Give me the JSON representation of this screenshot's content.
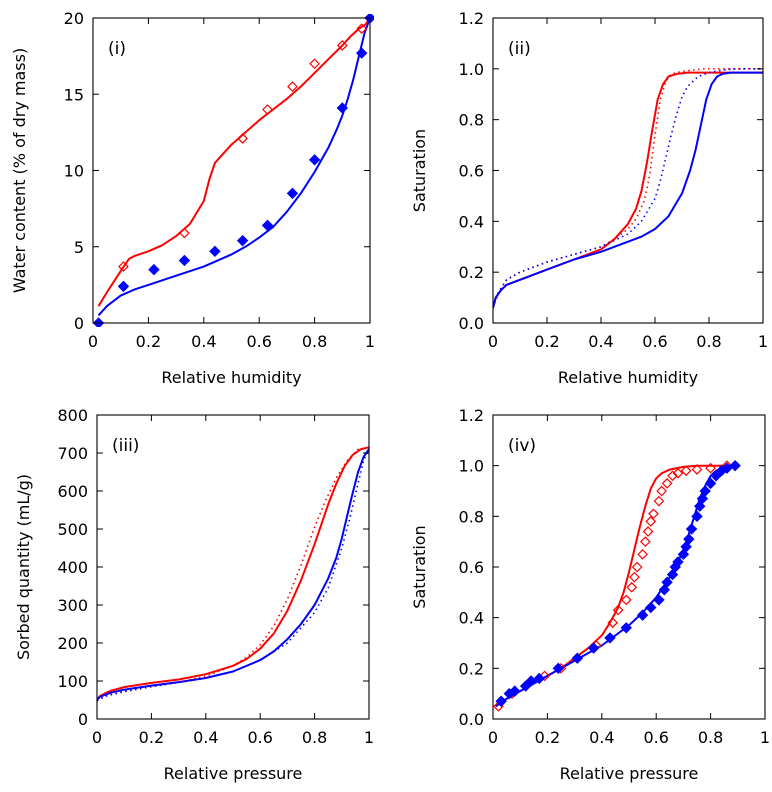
{
  "colors": {
    "desorption": "#ff0000",
    "adsorption": "#0000ff",
    "axis": "#000000"
  },
  "chart_data": [
    {
      "type": "line",
      "panel_label": "(i)",
      "xlabel": "Relative humidity",
      "ylabel": "Water content (% of dry mass)",
      "xlim": [
        0,
        1
      ],
      "ylim": [
        0,
        20
      ],
      "xticks": [
        0,
        0.2,
        0.4,
        0.6,
        0.8,
        1
      ],
      "xtick_labels": [
        "0",
        "0.2",
        "0.4",
        "0.6",
        "0.8",
        "1"
      ],
      "yticks": [
        0,
        5,
        10,
        15,
        20
      ],
      "ytick_labels": [
        "0",
        "5",
        "10",
        "15",
        "20"
      ],
      "series": [
        {
          "color": "#ff0000",
          "style": "solid",
          "x": [
            0.02,
            0.05,
            0.1,
            0.13,
            0.15,
            0.2,
            0.25,
            0.3,
            0.35,
            0.4,
            0.42,
            0.44,
            0.47,
            0.5,
            0.55,
            0.6,
            0.65,
            0.7,
            0.75,
            0.8,
            0.85,
            0.9,
            0.93,
            0.96,
            0.985,
            1.0
          ],
          "y": [
            1.1,
            2.0,
            3.4,
            4.2,
            4.4,
            4.7,
            5.1,
            5.7,
            6.5,
            8.0,
            9.4,
            10.5,
            11.1,
            11.7,
            12.5,
            13.3,
            14.0,
            14.7,
            15.5,
            16.4,
            17.3,
            18.2,
            18.8,
            19.3,
            19.6,
            20.0
          ]
        },
        {
          "color": "#0000ff",
          "style": "solid",
          "x": [
            0.02,
            0.05,
            0.1,
            0.15,
            0.2,
            0.3,
            0.4,
            0.5,
            0.55,
            0.6,
            0.65,
            0.7,
            0.75,
            0.8,
            0.85,
            0.88,
            0.9,
            0.92,
            0.94,
            0.96,
            0.98,
            1.0
          ],
          "y": [
            0.5,
            1.1,
            1.8,
            2.2,
            2.5,
            3.1,
            3.7,
            4.5,
            5.0,
            5.6,
            6.3,
            7.3,
            8.5,
            9.9,
            11.5,
            12.7,
            13.6,
            14.7,
            16.0,
            17.5,
            19.0,
            20.0
          ]
        },
        {
          "color": "#ff0000",
          "style": "open-diamond",
          "x": [
            0.02,
            0.11,
            0.33,
            0.54,
            0.63,
            0.72,
            0.8,
            0.9,
            0.97,
            1.0
          ],
          "y": [
            0.0,
            3.7,
            5.9,
            12.1,
            14.0,
            15.5,
            17.0,
            18.2,
            19.3,
            20.0
          ]
        },
        {
          "color": "#0000ff",
          "style": "filled-diamond",
          "x": [
            0.02,
            0.11,
            0.22,
            0.33,
            0.44,
            0.54,
            0.63,
            0.72,
            0.8,
            0.9,
            0.97,
            1.0
          ],
          "y": [
            0.0,
            2.4,
            3.5,
            4.1,
            4.7,
            5.4,
            6.4,
            8.5,
            10.7,
            14.1,
            17.7,
            20.0
          ]
        }
      ]
    },
    {
      "type": "line",
      "panel_label": "(ii)",
      "xlabel": "Relative humidity",
      "ylabel": "Saturation",
      "xlim": [
        0,
        1
      ],
      "ylim": [
        0,
        1.2
      ],
      "xticks": [
        0,
        0.2,
        0.4,
        0.6,
        0.8,
        1
      ],
      "xtick_labels": [
        "0",
        "0.2",
        "0.4",
        "0.6",
        "0.8",
        "1"
      ],
      "yticks": [
        0,
        0.2,
        0.4,
        0.6,
        0.8,
        1.0,
        1.2
      ],
      "ytick_labels": [
        "0.0",
        "0.2",
        "0.4",
        "0.6",
        "0.8",
        "1.0",
        "1.2"
      ],
      "series": [
        {
          "color": "#ff0000",
          "style": "solid",
          "x": [
            0.0,
            0.01,
            0.03,
            0.05,
            0.1,
            0.15,
            0.2,
            0.3,
            0.4,
            0.45,
            0.5,
            0.53,
            0.55,
            0.57,
            0.59,
            0.61,
            0.63,
            0.65,
            0.68,
            0.72,
            0.8,
            0.9,
            1.0
          ],
          "y": [
            0.06,
            0.1,
            0.13,
            0.15,
            0.17,
            0.19,
            0.21,
            0.25,
            0.29,
            0.33,
            0.39,
            0.45,
            0.52,
            0.63,
            0.76,
            0.88,
            0.94,
            0.97,
            0.98,
            0.985,
            0.985,
            0.985,
            0.985
          ]
        },
        {
          "color": "#0000ff",
          "style": "solid",
          "x": [
            0.0,
            0.01,
            0.03,
            0.05,
            0.1,
            0.15,
            0.2,
            0.3,
            0.4,
            0.5,
            0.55,
            0.6,
            0.65,
            0.7,
            0.73,
            0.75,
            0.77,
            0.79,
            0.81,
            0.83,
            0.85,
            0.88,
            0.92,
            1.0
          ],
          "y": [
            0.06,
            0.1,
            0.13,
            0.15,
            0.17,
            0.19,
            0.21,
            0.25,
            0.28,
            0.32,
            0.34,
            0.37,
            0.42,
            0.51,
            0.6,
            0.68,
            0.78,
            0.88,
            0.94,
            0.97,
            0.98,
            0.985,
            0.985,
            0.985
          ]
        },
        {
          "color": "#ff0000",
          "style": "dotted",
          "x": [
            0.0,
            0.02,
            0.05,
            0.1,
            0.2,
            0.3,
            0.4,
            0.45,
            0.5,
            0.53,
            0.56,
            0.58,
            0.6,
            0.62,
            0.64,
            0.66,
            0.7,
            0.78,
            0.85,
            0.9,
            1.0
          ],
          "y": [
            0.06,
            0.12,
            0.17,
            0.2,
            0.24,
            0.27,
            0.3,
            0.33,
            0.37,
            0.41,
            0.48,
            0.58,
            0.74,
            0.88,
            0.95,
            0.98,
            0.99,
            1.0,
            1.0,
            1.0,
            1.0
          ]
        },
        {
          "color": "#0000ff",
          "style": "dotted",
          "x": [
            0.0,
            0.02,
            0.05,
            0.1,
            0.2,
            0.3,
            0.4,
            0.5,
            0.55,
            0.6,
            0.62,
            0.64,
            0.66,
            0.68,
            0.7,
            0.72,
            0.76,
            0.8,
            0.85,
            0.9,
            1.0
          ],
          "y": [
            0.06,
            0.12,
            0.17,
            0.2,
            0.24,
            0.27,
            0.3,
            0.35,
            0.4,
            0.49,
            0.56,
            0.65,
            0.74,
            0.82,
            0.89,
            0.93,
            0.97,
            0.985,
            0.995,
            1.0,
            1.0
          ]
        }
      ]
    },
    {
      "type": "line",
      "panel_label": "(iii)",
      "xlabel": "Relative pressure",
      "ylabel": "Sorbed quantity (mL/g)",
      "xlim": [
        0,
        1
      ],
      "ylim": [
        0,
        800
      ],
      "xticks": [
        0,
        0.2,
        0.4,
        0.6,
        0.8,
        1
      ],
      "xtick_labels": [
        "0",
        "0.2",
        "0.4",
        "0.6",
        "0.8",
        "1"
      ],
      "yticks": [
        0,
        100,
        200,
        300,
        400,
        500,
        600,
        700,
        800
      ],
      "ytick_labels": [
        "0",
        "100",
        "200",
        "300",
        "400",
        "500",
        "600",
        "700",
        "800"
      ],
      "series": [
        {
          "color": "#ff0000",
          "style": "solid",
          "x": [
            0.0,
            0.01,
            0.03,
            0.05,
            0.1,
            0.2,
            0.3,
            0.4,
            0.5,
            0.55,
            0.6,
            0.65,
            0.7,
            0.75,
            0.8,
            0.85,
            0.88,
            0.91,
            0.94,
            0.97,
            1.0
          ],
          "y": [
            50,
            60,
            68,
            74,
            84,
            95,
            104,
            118,
            140,
            158,
            185,
            225,
            285,
            365,
            460,
            565,
            620,
            665,
            695,
            710,
            715
          ]
        },
        {
          "color": "#0000ff",
          "style": "solid",
          "x": [
            0.0,
            0.01,
            0.03,
            0.05,
            0.1,
            0.2,
            0.3,
            0.4,
            0.5,
            0.6,
            0.65,
            0.7,
            0.75,
            0.8,
            0.85,
            0.88,
            0.9,
            0.92,
            0.94,
            0.96,
            0.98,
            1.0
          ],
          "y": [
            50,
            58,
            64,
            69,
            77,
            88,
            97,
            108,
            125,
            155,
            178,
            210,
            250,
            300,
            370,
            425,
            475,
            535,
            595,
            650,
            690,
            710
          ]
        },
        {
          "color": "#ff0000",
          "style": "dotted",
          "x": [
            0.0,
            0.03,
            0.1,
            0.2,
            0.3,
            0.4,
            0.5,
            0.55,
            0.6,
            0.65,
            0.7,
            0.75,
            0.8,
            0.84,
            0.88,
            0.92,
            0.96,
            1.0
          ],
          "y": [
            48,
            60,
            72,
            85,
            97,
            112,
            140,
            162,
            195,
            245,
            315,
            405,
            505,
            575,
            635,
            680,
            710,
            715
          ]
        },
        {
          "color": "#0000ff",
          "style": "dotted",
          "x": [
            0.0,
            0.03,
            0.1,
            0.2,
            0.3,
            0.4,
            0.5,
            0.6,
            0.7,
            0.8,
            0.85,
            0.9,
            0.93,
            0.96,
            0.98,
            1.0
          ],
          "y": [
            48,
            60,
            72,
            85,
            96,
            108,
            125,
            155,
            200,
            280,
            345,
            450,
            530,
            620,
            680,
            710
          ]
        }
      ]
    },
    {
      "type": "line",
      "panel_label": "(iv)",
      "xlabel": "Relative pressure",
      "ylabel": "Saturation",
      "xlim": [
        0,
        1
      ],
      "ylim": [
        0,
        1.2
      ],
      "xticks": [
        0,
        0.2,
        0.4,
        0.6,
        0.8,
        1
      ],
      "xtick_labels": [
        "0",
        "0.2",
        "0.4",
        "0.6",
        "0.8",
        "1"
      ],
      "yticks": [
        0,
        0.2,
        0.4,
        0.6,
        0.8,
        1.0,
        1.2
      ],
      "ytick_labels": [
        "0.0",
        "0.2",
        "0.4",
        "0.6",
        "0.8",
        "1.0",
        "1.2"
      ],
      "series": [
        {
          "color": "#ff0000",
          "style": "solid",
          "x": [
            0.01,
            0.05,
            0.1,
            0.15,
            0.2,
            0.25,
            0.3,
            0.35,
            0.4,
            0.43,
            0.46,
            0.48,
            0.5,
            0.52,
            0.54,
            0.56,
            0.58,
            0.6,
            0.62,
            0.65,
            0.7,
            0.75,
            0.8,
            0.85,
            0.9
          ],
          "y": [
            0.05,
            0.08,
            0.11,
            0.14,
            0.17,
            0.2,
            0.24,
            0.28,
            0.33,
            0.38,
            0.44,
            0.5,
            0.58,
            0.67,
            0.76,
            0.84,
            0.91,
            0.95,
            0.97,
            0.985,
            0.995,
            1.0,
            1.0,
            1.0,
            1.0
          ]
        },
        {
          "color": "#0000ff",
          "style": "solid",
          "x": [
            0.01,
            0.05,
            0.1,
            0.15,
            0.2,
            0.25,
            0.3,
            0.35,
            0.4,
            0.45,
            0.5,
            0.55,
            0.6,
            0.65,
            0.68,
            0.7,
            0.72,
            0.74,
            0.76,
            0.78,
            0.8,
            0.82,
            0.85,
            0.9
          ],
          "y": [
            0.05,
            0.08,
            0.11,
            0.14,
            0.17,
            0.2,
            0.23,
            0.26,
            0.29,
            0.33,
            0.37,
            0.42,
            0.48,
            0.56,
            0.62,
            0.67,
            0.73,
            0.8,
            0.87,
            0.92,
            0.96,
            0.98,
            0.99,
            1.0
          ]
        },
        {
          "color": "#ff0000",
          "style": "open-diamond",
          "x": [
            0.02,
            0.07,
            0.12,
            0.19,
            0.25,
            0.31,
            0.38,
            0.44,
            0.46,
            0.49,
            0.51,
            0.52,
            0.53,
            0.55,
            0.56,
            0.57,
            0.58,
            0.59,
            0.61,
            0.62,
            0.64,
            0.66,
            0.68,
            0.71,
            0.75,
            0.8,
            0.86,
            0.89
          ],
          "y": [
            0.05,
            0.1,
            0.13,
            0.17,
            0.2,
            0.24,
            0.29,
            0.38,
            0.43,
            0.47,
            0.52,
            0.56,
            0.6,
            0.65,
            0.7,
            0.74,
            0.78,
            0.81,
            0.86,
            0.9,
            0.93,
            0.96,
            0.97,
            0.98,
            0.985,
            0.99,
            1.0,
            1.0
          ]
        },
        {
          "color": "#0000ff",
          "style": "filled-diamond",
          "x": [
            0.03,
            0.06,
            0.08,
            0.12,
            0.14,
            0.17,
            0.24,
            0.31,
            0.37,
            0.43,
            0.49,
            0.55,
            0.58,
            0.61,
            0.63,
            0.64,
            0.66,
            0.67,
            0.68,
            0.7,
            0.71,
            0.72,
            0.73,
            0.75,
            0.76,
            0.77,
            0.78,
            0.8,
            0.82,
            0.84,
            0.86,
            0.89
          ],
          "y": [
            0.07,
            0.1,
            0.11,
            0.13,
            0.15,
            0.16,
            0.2,
            0.24,
            0.28,
            0.32,
            0.36,
            0.41,
            0.44,
            0.47,
            0.51,
            0.54,
            0.57,
            0.6,
            0.62,
            0.65,
            0.68,
            0.71,
            0.75,
            0.8,
            0.84,
            0.87,
            0.9,
            0.93,
            0.96,
            0.98,
            0.99,
            1.0
          ]
        }
      ]
    }
  ]
}
